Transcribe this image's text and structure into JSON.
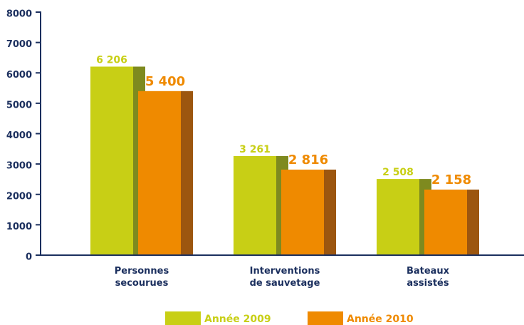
{
  "chart_data": {
    "type": "bar",
    "categories": [
      [
        "Personnes",
        "secourues"
      ],
      [
        "Interventions",
        "de sauvetage"
      ],
      [
        "Bateaux",
        "assistés"
      ]
    ],
    "series": [
      {
        "name": "Année 2009",
        "color": "#c8cf15",
        "side_color": "#7e8a1f",
        "values": [
          6206,
          3261,
          2508
        ],
        "value_labels": [
          "6 206",
          "3 261",
          "2 508"
        ]
      },
      {
        "name": "Année 2010",
        "color": "#ef8a00",
        "side_color": "#9c560f",
        "values": [
          5400,
          2816,
          2158
        ],
        "value_labels": [
          "5 400",
          "2 816",
          "2 158"
        ]
      }
    ],
    "ylim": [
      0,
      8000
    ],
    "yticks": [
      0,
      1000,
      2000,
      3000,
      4000,
      5000,
      6000,
      7000,
      8000
    ]
  }
}
